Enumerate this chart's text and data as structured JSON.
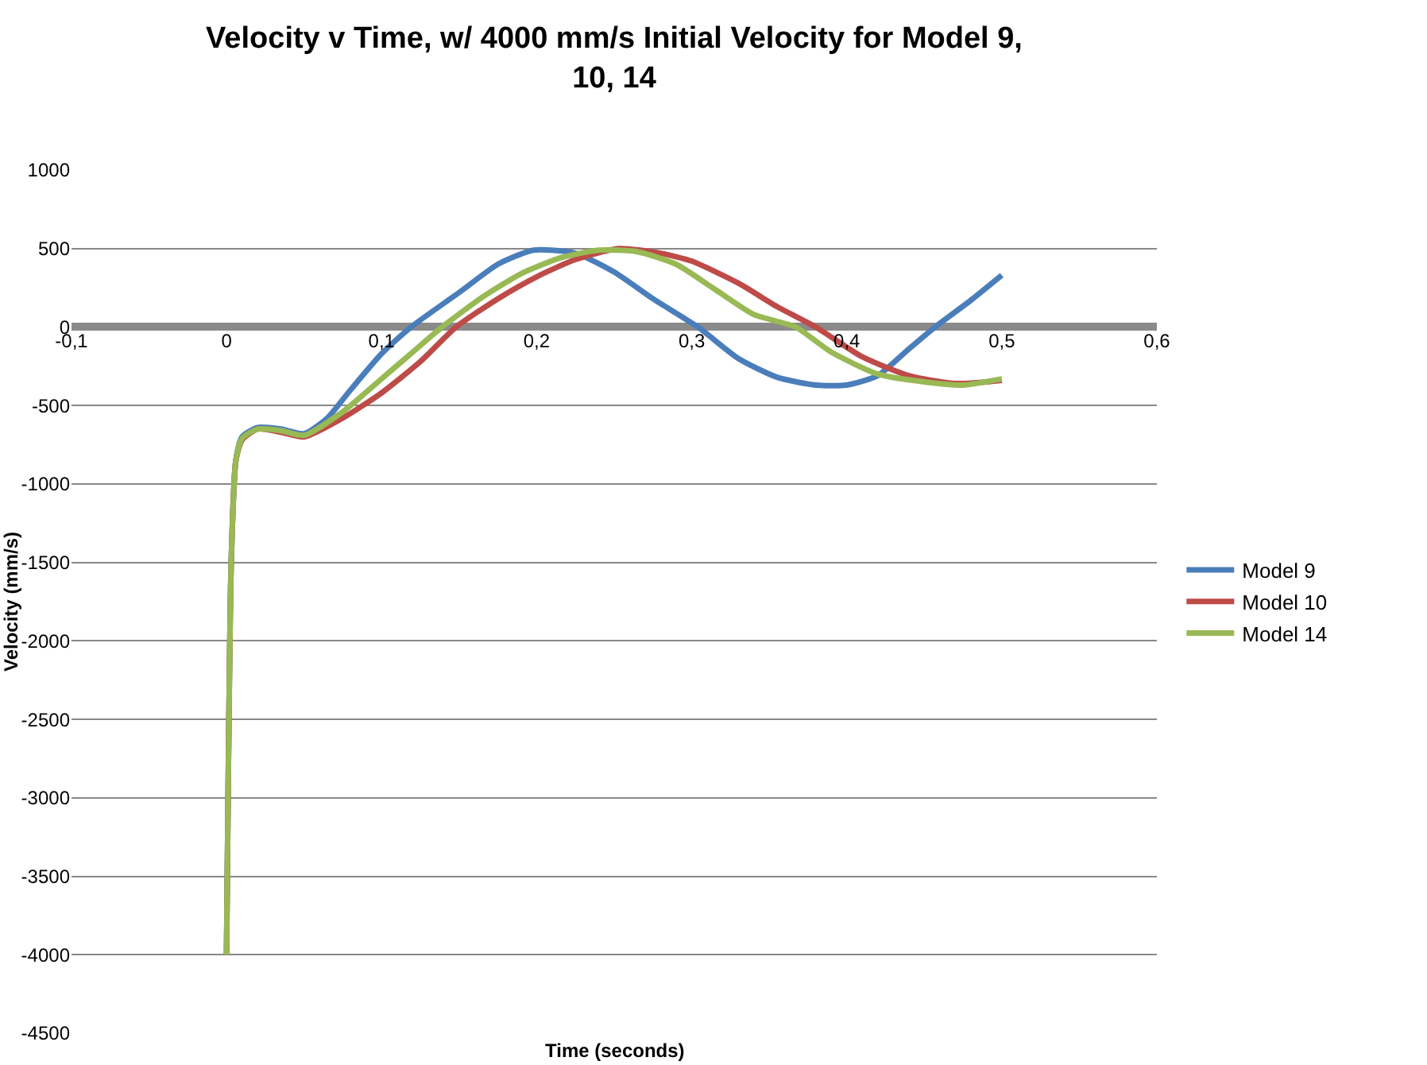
{
  "chart_data": {
    "type": "line",
    "title": "Velocity v Time, w/ 4000 mm/s Initial Velocity for Model 9, 10, 14",
    "xlabel": "Time (seconds)",
    "ylabel": "Velocity (mm/s)",
    "series": [
      {
        "name": "Model 9",
        "color": "#4a7ebb",
        "x": [
          0,
          0.003,
          0.006,
          0.01,
          0.02,
          0.035,
          0.05,
          0.065,
          0.08,
          0.1,
          0.119,
          0.15,
          0.175,
          0.198,
          0.225,
          0.25,
          0.275,
          0.304,
          0.33,
          0.355,
          0.38,
          0.4,
          0.42,
          0.44,
          0.457,
          0.48,
          0.5
        ],
        "values": [
          -4000,
          -1500,
          -850,
          -700,
          -640,
          -650,
          -680,
          -580,
          -400,
          -170,
          0,
          220,
          400,
          490,
          470,
          350,
          180,
          0,
          -200,
          -320,
          -370,
          -370,
          -310,
          -140,
          0,
          170,
          330
        ]
      },
      {
        "name": "Model 10",
        "color": "#be4b48",
        "x": [
          0,
          0.003,
          0.006,
          0.01,
          0.02,
          0.035,
          0.05,
          0.075,
          0.1,
          0.125,
          0.148,
          0.175,
          0.2,
          0.225,
          0.253,
          0.28,
          0.3,
          0.33,
          0.355,
          0.38,
          0.41,
          0.44,
          0.47,
          0.49,
          0.5
        ],
        "values": [
          -4000,
          -1500,
          -850,
          -720,
          -650,
          -670,
          -700,
          -580,
          -420,
          -220,
          0,
          180,
          320,
          430,
          500,
          470,
          420,
          280,
          130,
          0,
          -190,
          -310,
          -360,
          -350,
          -340
        ]
      },
      {
        "name": "Model 14",
        "color": "#98b954",
        "x": [
          0,
          0.003,
          0.006,
          0.01,
          0.02,
          0.035,
          0.05,
          0.075,
          0.1,
          0.12,
          0.139,
          0.165,
          0.19,
          0.215,
          0.24,
          0.265,
          0.29,
          0.315,
          0.34,
          0.367,
          0.39,
          0.42,
          0.45,
          0.475,
          0.5
        ],
        "values": [
          -4000,
          -1500,
          -850,
          -710,
          -650,
          -660,
          -690,
          -540,
          -330,
          -160,
          0,
          190,
          340,
          440,
          490,
          480,
          400,
          240,
          80,
          0,
          -160,
          -300,
          -350,
          -370,
          -330
        ]
      }
    ],
    "xlim": [
      -0.1,
      0.6
    ],
    "xticks": [
      {
        "value": -0.1,
        "label": "-0,1"
      },
      0,
      {
        "value": 0.1,
        "label": "0,1"
      },
      {
        "value": 0.2,
        "label": "0,2"
      },
      {
        "value": 0.3,
        "label": "0,3"
      },
      {
        "value": 0.4,
        "label": "0,4"
      },
      {
        "value": 0.5,
        "label": "0,5"
      },
      {
        "value": 0.6,
        "label": "0,6"
      }
    ],
    "ylim": [
      -4500,
      1000
    ],
    "yticks": [
      -4500,
      -4000,
      -3500,
      -3000,
      -2500,
      -2000,
      -1500,
      -1000,
      -500,
      0,
      500,
      1000
    ],
    "grid": "y",
    "legend": "right",
    "marker": "none",
    "line_style": "solid"
  }
}
